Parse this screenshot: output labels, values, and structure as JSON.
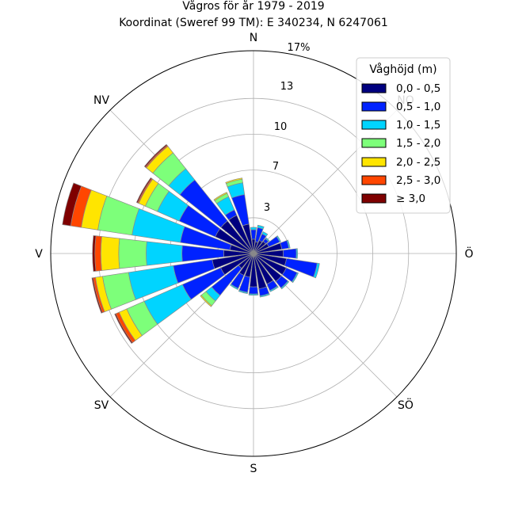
{
  "header": {
    "title_line1": "Vågros för år 1979 - 2019",
    "title_line2": "Koordinat (Sweref 99 TM): E 340234, N 6247061"
  },
  "directions": {
    "n": "N",
    "no": "NO",
    "o": "Ö",
    "so": "SÖ",
    "s": "S",
    "sv": "SV",
    "v": "V",
    "nv": "NV"
  },
  "rings": {
    "r3": "3",
    "r7": "7",
    "r10": "10",
    "r13": "13",
    "r17": "17%"
  },
  "legend": {
    "title": "Våghöjd (m)",
    "items": [
      {
        "label": "0,0 - 0,5",
        "color": "#00007f"
      },
      {
        "label": "0,5 - 1,0",
        "color": "#0022ff"
      },
      {
        "label": "1,0 - 1,5",
        "color": "#00d4ff"
      },
      {
        "label": "1,5 - 2,0",
        "color": "#7dff7a"
      },
      {
        "label": "2,0 - 2,5",
        "color": "#ffe500"
      },
      {
        "label": "2,5 - 3,0",
        "color": "#ff4600"
      },
      {
        "label": "≥ 3,0",
        "color": "#7f0000"
      }
    ]
  },
  "chart_data": {
    "type": "wind-rose",
    "title": "Vågros för år 1979 - 2019",
    "subtitle": "Koordinat (Sweref 99 TM): E 340234, N 6247061",
    "unit": "%",
    "r_max": 17,
    "r_ticks": [
      3,
      7,
      10,
      13,
      17
    ],
    "sector_count": 24,
    "sector_width_deg": 15,
    "bins": [
      "0,0 - 0,5",
      "0,5 - 1,0",
      "1,0 - 1,5",
      "1,5 - 2,0",
      "2,0 - 2,5",
      "2,5 - 3,0",
      "≥ 3,0"
    ],
    "colors": [
      "#00007f",
      "#0022ff",
      "#00d4ff",
      "#7dff7a",
      "#ffe500",
      "#ff4600",
      "#7f0000"
    ],
    "sectors": [
      {
        "direction_deg": 0,
        "cumulative": [
          1.2,
          2.0,
          2.2
        ]
      },
      {
        "direction_deg": 15,
        "cumulative": [
          1.0,
          2.2,
          2.4
        ]
      },
      {
        "direction_deg": 30,
        "cumulative": [
          1.2,
          1.8,
          2.0
        ]
      },
      {
        "direction_deg": 45,
        "cumulative": [
          1.3,
          1.6,
          1.7
        ]
      },
      {
        "direction_deg": 60,
        "cumulative": [
          1.4,
          2.4,
          2.5
        ]
      },
      {
        "direction_deg": 75,
        "cumulative": [
          2.4,
          3.0,
          3.1
        ]
      },
      {
        "direction_deg": 90,
        "cumulative": [
          2.5,
          3.6,
          3.7
        ]
      },
      {
        "direction_deg": 105,
        "cumulative": [
          2.8,
          5.4,
          5.6
        ]
      },
      {
        "direction_deg": 120,
        "cumulative": [
          3.0,
          4.0,
          4.1
        ]
      },
      {
        "direction_deg": 135,
        "cumulative": [
          3.0,
          3.7,
          3.8
        ]
      },
      {
        "direction_deg": 150,
        "cumulative": [
          2.8,
          3.4,
          3.5
        ]
      },
      {
        "direction_deg": 165,
        "cumulative": [
          3.0,
          3.6,
          3.7
        ]
      },
      {
        "direction_deg": 180,
        "cumulative": [
          2.8,
          3.4,
          3.5
        ]
      },
      {
        "direction_deg": 195,
        "cumulative": [
          2.0,
          3.3,
          3.4
        ]
      },
      {
        "direction_deg": 210,
        "cumulative": [
          2.0,
          3.2,
          3.3
        ]
      },
      {
        "direction_deg": 225,
        "cumulative": [
          1.6,
          4.5,
          5.1,
          5.6,
          5.7
        ]
      },
      {
        "direction_deg": 240,
        "cumulative": [
          3.0,
          6.5,
          10.0,
          11.6,
          12.3,
          12.6,
          12.7
        ]
      },
      {
        "direction_deg": 255,
        "cumulative": [
          3.5,
          6.8,
          10.6,
          12.8,
          13.4,
          13.6,
          13.7
        ]
      },
      {
        "direction_deg": 270,
        "cumulative": [
          2.5,
          6.0,
          9.0,
          11.3,
          12.8,
          13.3,
          13.5
        ]
      },
      {
        "direction_deg": 285,
        "cumulative": [
          2.0,
          6.2,
          10.3,
          13.2,
          14.6,
          15.5,
          16.2
        ]
      },
      {
        "direction_deg": 300,
        "cumulative": [
          3.5,
          6.8,
          8.8,
          9.9,
          10.5,
          10.6,
          10.7
        ]
      },
      {
        "direction_deg": 315,
        "cumulative": [
          3.5,
          7.9,
          9.1,
          10.8,
          11.5,
          11.6,
          11.7
        ]
      },
      {
        "direction_deg": 330,
        "cumulative": [
          3.5,
          4.0,
          5.2,
          5.5,
          5.6
        ]
      },
      {
        "direction_deg": 345,
        "cumulative": [
          2.5,
          5.0,
          6.0,
          6.3,
          6.4
        ]
      }
    ]
  }
}
